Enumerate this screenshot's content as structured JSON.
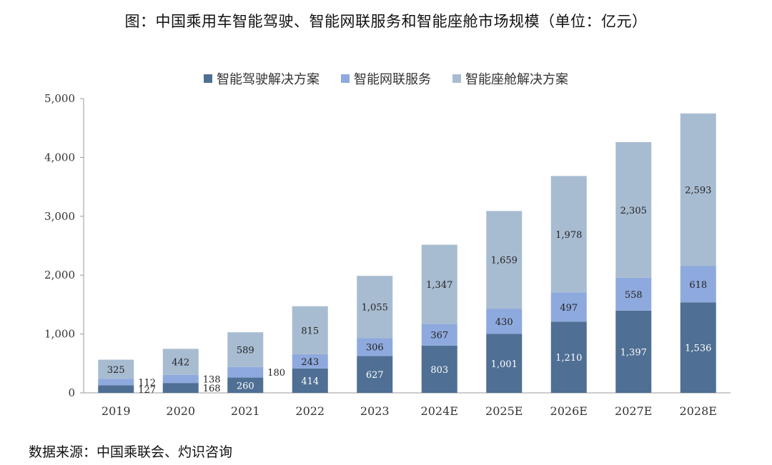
{
  "title": "图：中国乘用车智能驾驶、智能网联服务和智能座舱市场规模（单位：亿元）",
  "source": "数据来源：中国乘联会、灼识咨询",
  "colors": {
    "driving": "#4f6f94",
    "connected": "#8ea9dd",
    "cockpit": "#a8bcd1"
  },
  "chart_data": {
    "type": "bar",
    "stacked": true,
    "title": "图：中国乘用车智能驾驶、智能网联服务和智能座舱市场规模（单位：亿元）",
    "xlabel": "",
    "ylabel": "",
    "ylim": [
      0,
      5000
    ],
    "yticks": [
      "0",
      "1,000",
      "2,000",
      "3,000",
      "4,000",
      "5,000"
    ],
    "legend_position": "top",
    "categories": [
      "2019",
      "2020",
      "2021",
      "2022",
      "2023",
      "2024E",
      "2025E",
      "2026E",
      "2027E",
      "2028E"
    ],
    "series": [
      {
        "name": "智能驾驶解决方案",
        "values": [
          127,
          168,
          260,
          414,
          627,
          803,
          1001,
          1210,
          1397,
          1536
        ],
        "labels": [
          "127",
          "168",
          "260",
          "414",
          "627",
          "803",
          "1,001",
          "1,210",
          "1,397",
          "1,536"
        ]
      },
      {
        "name": "智能网联服务",
        "values": [
          112,
          138,
          180,
          243,
          306,
          367,
          430,
          497,
          558,
          618
        ],
        "labels": [
          "112",
          "138",
          "180",
          "243",
          "306",
          "367",
          "430",
          "497",
          "558",
          "618"
        ]
      },
      {
        "name": "智能座舱解决方案",
        "values": [
          325,
          442,
          589,
          815,
          1055,
          1347,
          1659,
          1978,
          2305,
          2593
        ],
        "labels": [
          "325",
          "442",
          "589",
          "815",
          "1,055",
          "1,347",
          "1,659",
          "1,978",
          "2,305",
          "2,593"
        ]
      }
    ]
  }
}
